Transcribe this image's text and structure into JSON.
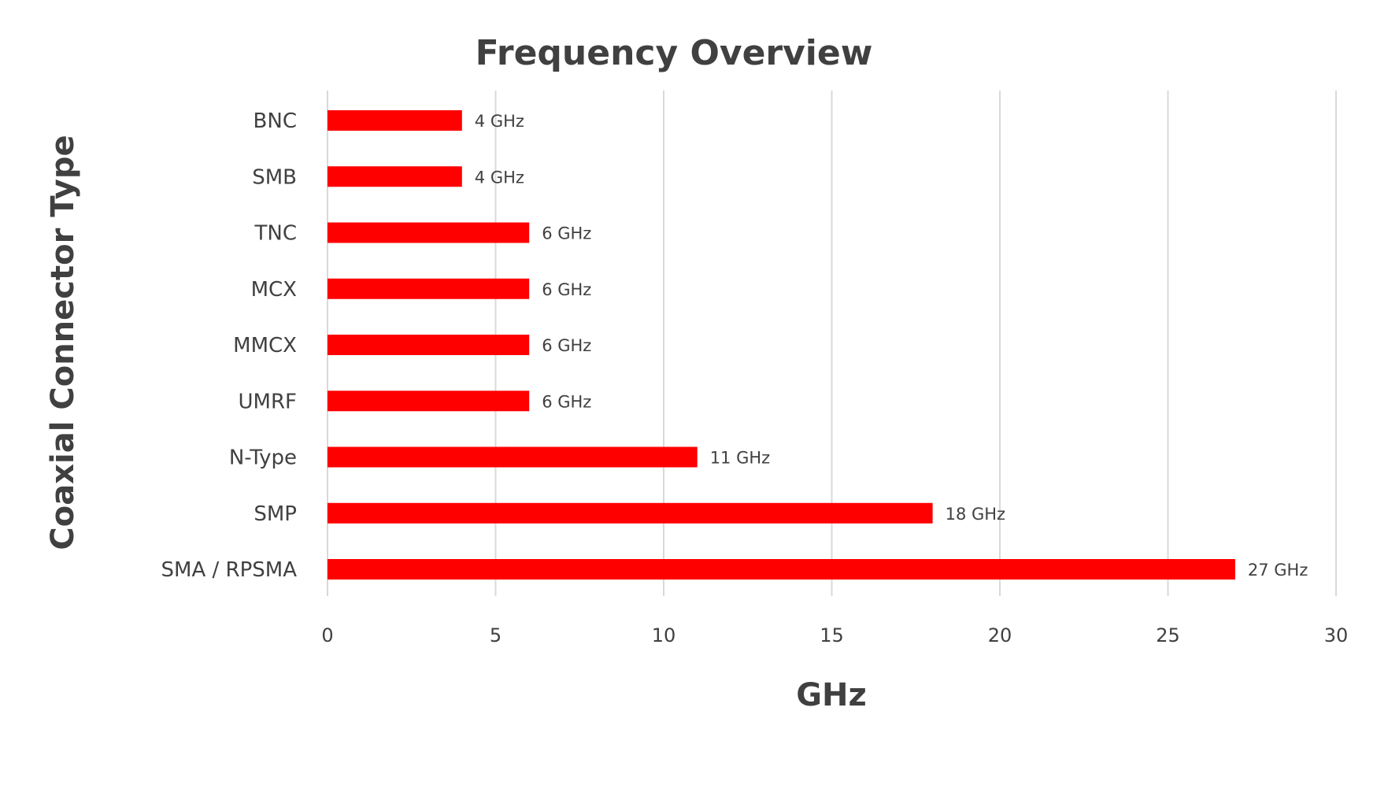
{
  "chart_data": {
    "type": "bar",
    "orientation": "horizontal",
    "title": "Frequency Overview",
    "xlabel": "GHz",
    "ylabel": "Coaxial Connector Type",
    "categories": [
      "BNC",
      "SMB",
      "TNC",
      "MCX",
      "MMCX",
      "UMRF",
      "N-Type",
      "SMP",
      "SMA / RPSMA"
    ],
    "values": [
      4,
      4,
      6,
      6,
      6,
      6,
      11,
      18,
      27
    ],
    "data_labels": [
      "4 GHz",
      "4 GHz",
      "6 GHz",
      "6 GHz",
      "6 GHz",
      "6 GHz",
      "11 GHz",
      "18 GHz",
      "27 GHz"
    ],
    "xlim": [
      0,
      30
    ],
    "xticks": [
      "0",
      "5",
      "10",
      "15",
      "20",
      "25",
      "30"
    ],
    "grid": "vertical",
    "legend": "none",
    "bar_color": "#ff0000"
  }
}
